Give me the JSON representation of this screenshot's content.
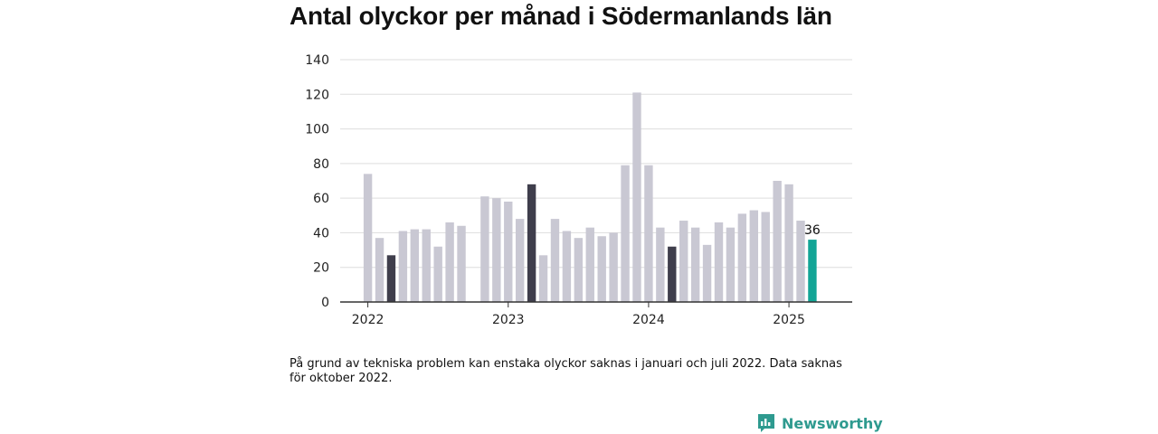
{
  "chart_data": {
    "type": "bar",
    "title": "Antal olyckor per månad i Södermanlands län",
    "categories": [
      "2022-01",
      "2022-02",
      "2022-03",
      "2022-04",
      "2022-05",
      "2022-06",
      "2022-07",
      "2022-08",
      "2022-09",
      "2022-10",
      "2022-11",
      "2022-12",
      "2023-01",
      "2023-02",
      "2023-03",
      "2023-04",
      "2023-05",
      "2023-06",
      "2023-07",
      "2023-08",
      "2023-09",
      "2023-10",
      "2023-11",
      "2023-12",
      "2024-01",
      "2024-02",
      "2024-03",
      "2024-04",
      "2024-05",
      "2024-06",
      "2024-07",
      "2024-08",
      "2024-09",
      "2024-10",
      "2024-11",
      "2024-12",
      "2025-01",
      "2025-02",
      "2025-03"
    ],
    "values": [
      74,
      37,
      27,
      41,
      42,
      42,
      32,
      46,
      44,
      null,
      61,
      60,
      58,
      48,
      68,
      27,
      48,
      41,
      37,
      43,
      38,
      40,
      79,
      121,
      79,
      43,
      32,
      47,
      43,
      33,
      46,
      43,
      51,
      53,
      52,
      70,
      68,
      47,
      36
    ],
    "highlighted": [
      "2022-03",
      "2023-03",
      "2024-03"
    ],
    "current": "2025-03",
    "current_label": "36",
    "xticks": [
      {
        "label": "2022",
        "at": "2022-01"
      },
      {
        "label": "2023",
        "at": "2023-01"
      },
      {
        "label": "2024",
        "at": "2024-01"
      },
      {
        "label": "2025",
        "at": "2025-01"
      }
    ],
    "yticks": [
      0,
      20,
      40,
      60,
      80,
      100,
      120,
      140
    ],
    "ylim": [
      0,
      140
    ],
    "grid": true,
    "colors": {
      "default": "#c9c8d3",
      "highlight": "#3f3e4c",
      "current": "#12a596",
      "grid": "#dddddd",
      "axis": "#333333"
    }
  },
  "note": "På grund av tekniska problem kan enstaka olyckor saknas i januari och juli 2022. Data saknas för oktober 2022.",
  "brand": {
    "name": "Newsworthy",
    "icon": "newsworthy-logo-icon",
    "color": "#2e9a8f"
  }
}
